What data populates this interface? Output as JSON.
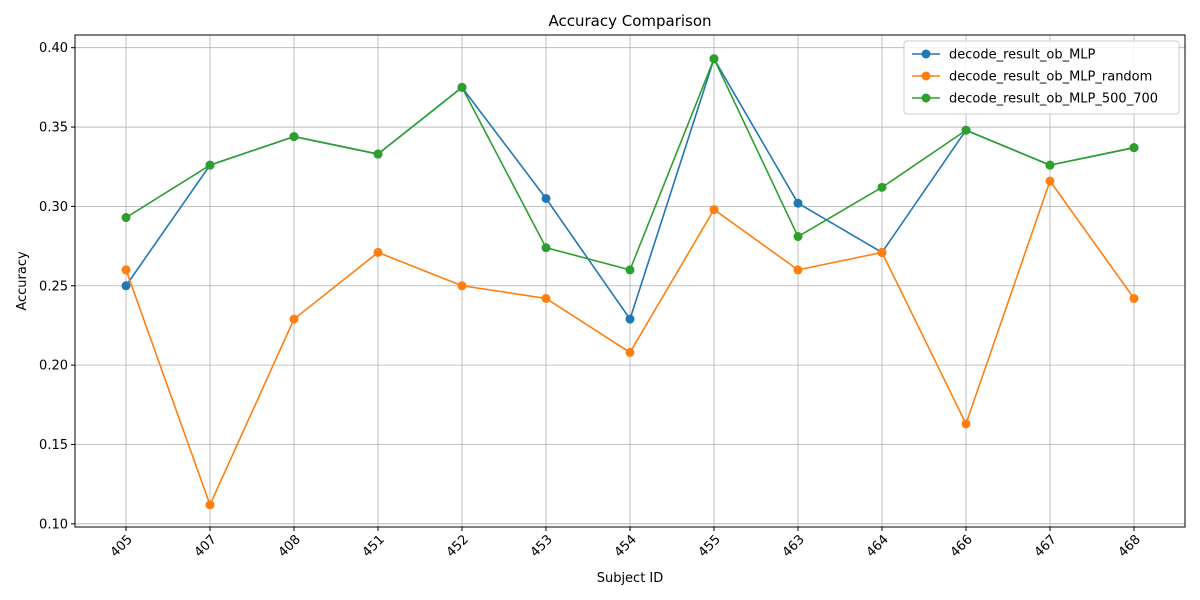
{
  "chart_data": {
    "type": "line",
    "title": "Accuracy Comparison",
    "xlabel": "Subject ID",
    "ylabel": "Accuracy",
    "categories": [
      "405",
      "407",
      "408",
      "451",
      "452",
      "453",
      "454",
      "455",
      "463",
      "464",
      "466",
      "467",
      "468"
    ],
    "ylim": [
      0.098,
      0.408
    ],
    "yticks": [
      "0.10",
      "0.15",
      "0.20",
      "0.25",
      "0.30",
      "0.35",
      "0.40"
    ],
    "grid": true,
    "legend_position": "top-right",
    "series": [
      {
        "name": "decode_result_ob_MLP",
        "color": "#1f77b4",
        "values": [
          0.25,
          0.326,
          0.344,
          0.333,
          0.375,
          0.305,
          0.229,
          0.393,
          0.302,
          0.271,
          0.348,
          0.326,
          0.337
        ]
      },
      {
        "name": "decode_result_ob_MLP_random",
        "color": "#ff7f0e",
        "values": [
          0.26,
          0.112,
          0.229,
          0.271,
          0.25,
          0.242,
          0.208,
          0.298,
          0.26,
          0.271,
          0.163,
          0.316,
          0.242
        ]
      },
      {
        "name": "decode_result_ob_MLP_500_700",
        "color": "#2ca02c",
        "values": [
          0.293,
          0.326,
          0.344,
          0.333,
          0.375,
          0.274,
          0.26,
          0.393,
          0.281,
          0.312,
          0.348,
          0.326,
          0.337
        ]
      }
    ]
  }
}
